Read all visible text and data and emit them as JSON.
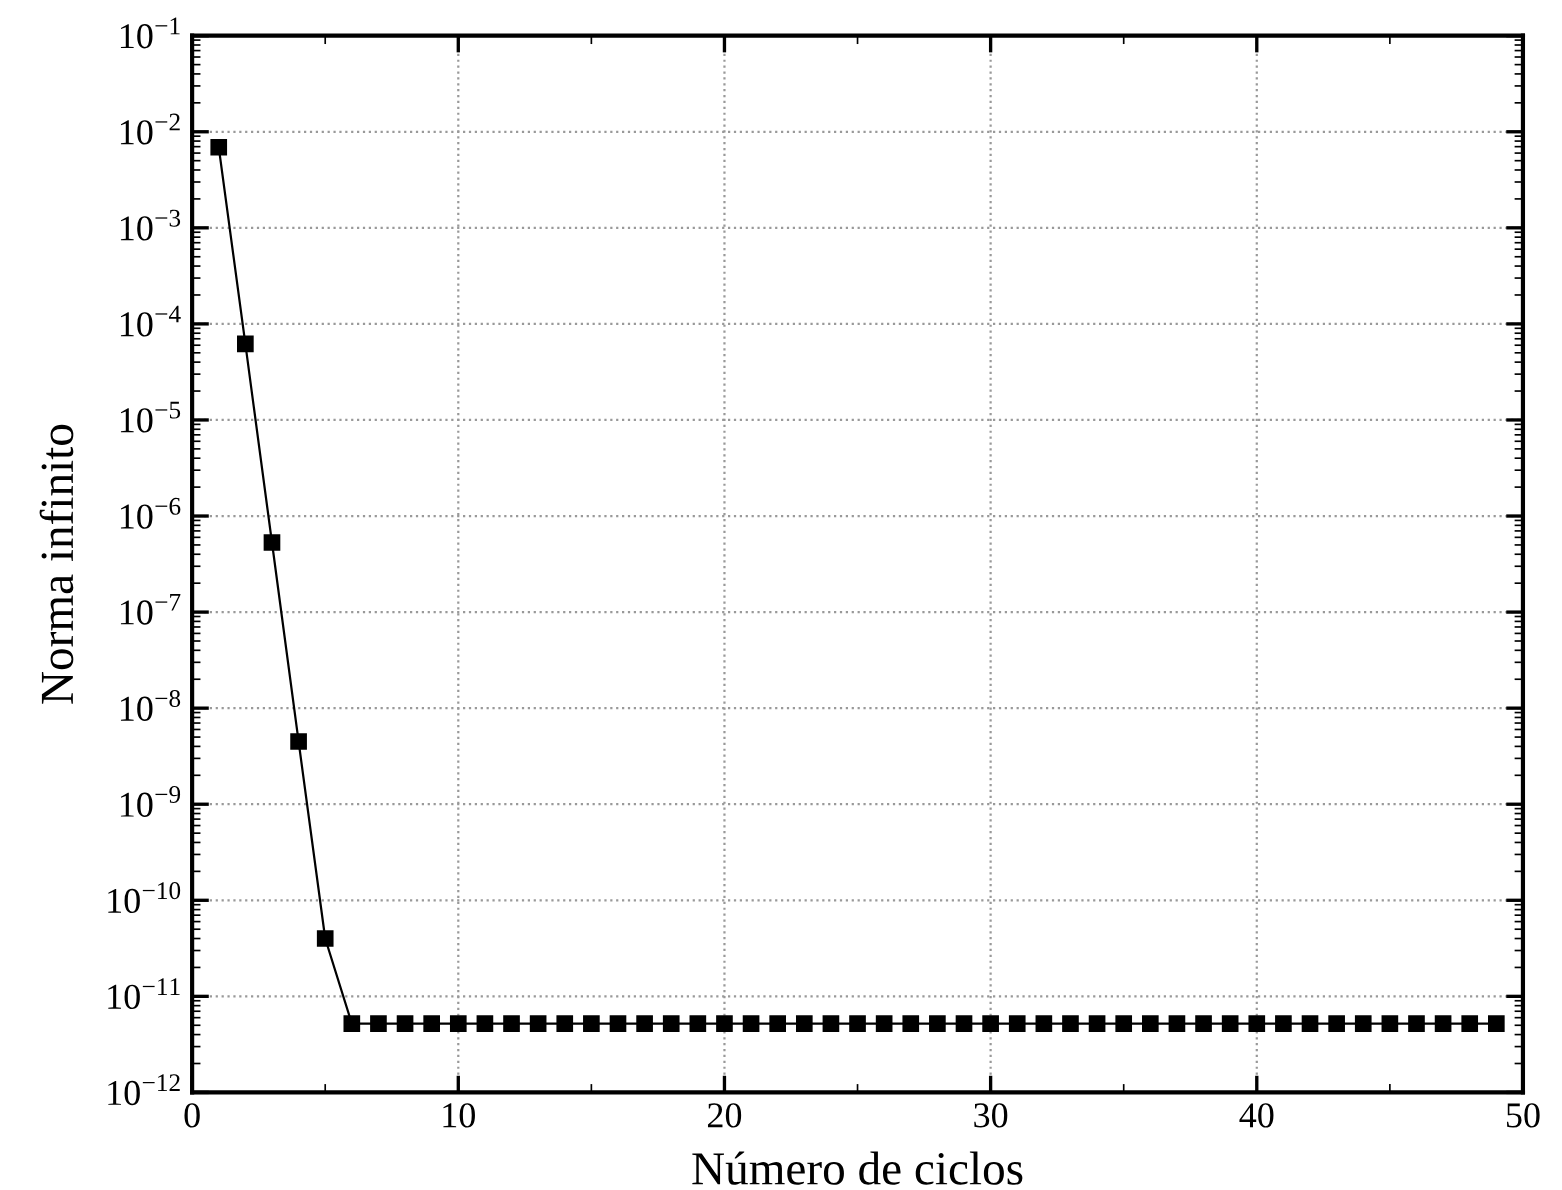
{
  "chart_data": {
    "type": "line",
    "xlabel": "Número de ciclos",
    "ylabel": "Norma infinito",
    "x": [
      1,
      2,
      3,
      4,
      5,
      6,
      7,
      8,
      9,
      10,
      11,
      12,
      13,
      14,
      15,
      16,
      17,
      18,
      19,
      20,
      21,
      22,
      23,
      24,
      25,
      26,
      27,
      28,
      29,
      30,
      31,
      32,
      33,
      34,
      35,
      36,
      37,
      38,
      39,
      40,
      41,
      42,
      43,
      44,
      45,
      46,
      47,
      48,
      49
    ],
    "series": [
      {
        "color": "#000000",
        "values": [
          0.0069,
          6.2e-05,
          5.3e-07,
          4.5e-09,
          4e-11,
          5.2e-12,
          5.2e-12,
          5.2e-12,
          5.2e-12,
          5.2e-12,
          5.2e-12,
          5.2e-12,
          5.2e-12,
          5.2e-12,
          5.2e-12,
          5.2e-12,
          5.2e-12,
          5.2e-12,
          5.2e-12,
          5.2e-12,
          5.2e-12,
          5.2e-12,
          5.2e-12,
          5.2e-12,
          5.2e-12,
          5.2e-12,
          5.2e-12,
          5.2e-12,
          5.2e-12,
          5.2e-12,
          5.2e-12,
          5.2e-12,
          5.2e-12,
          5.2e-12,
          5.2e-12,
          5.2e-12,
          5.2e-12,
          5.2e-12,
          5.2e-12,
          5.2e-12,
          5.2e-12,
          5.2e-12,
          5.2e-12,
          5.2e-12,
          5.2e-12,
          5.2e-12,
          5.2e-12,
          5.2e-12,
          5.2e-12
        ]
      }
    ],
    "log": "y",
    "xlim": [
      0,
      50
    ],
    "xticks": [
      0,
      10,
      20,
      30,
      40,
      50
    ],
    "ylim": [
      1e-12,
      0.1
    ],
    "yticks": [
      {
        "value": 1e-12,
        "label": "10$^{−12}$"
      },
      {
        "value": 1e-11,
        "label": "10$^{−11}$"
      },
      {
        "value": 1e-10,
        "label": "10$^{−10}$"
      },
      {
        "value": 1e-09,
        "label": "10$^{−9}$"
      },
      {
        "value": 1e-08,
        "label": "10$^{−8}$"
      },
      {
        "value": 1e-07,
        "label": "10$^{−7}$"
      },
      {
        "value": 1e-06,
        "label": "10$^{−6}$"
      },
      {
        "value": 1e-05,
        "label": "10$^{−5}$"
      },
      {
        "value": 0.0001,
        "label": "10$^{−4}$"
      },
      {
        "value": 0.001,
        "label": "10$^{−3}$"
      },
      {
        "value": 0.01,
        "label": "10$^{−2}$"
      },
      {
        "value": 0.1,
        "label": "10$^{−1}$"
      }
    ],
    "grid": true,
    "marker": "square",
    "line_style": "solid"
  }
}
